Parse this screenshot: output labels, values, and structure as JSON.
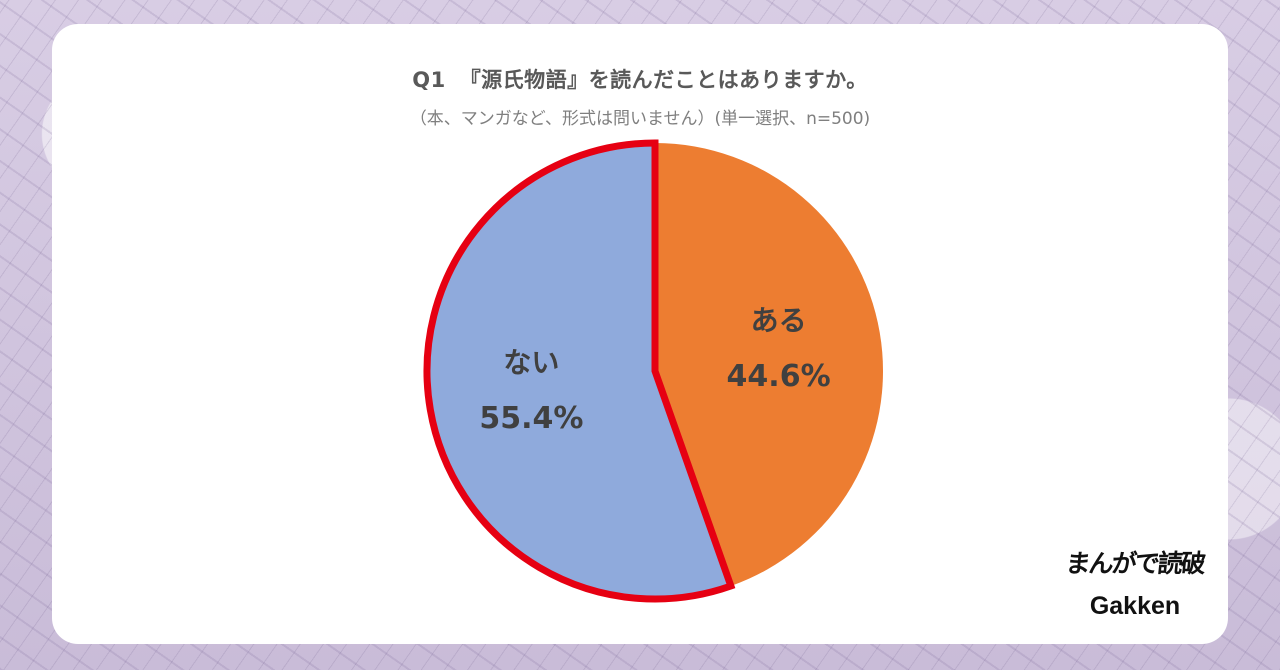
{
  "chart_data": {
    "type": "pie",
    "title_number": "Q1",
    "title": "『源氏物語』を読んだことはありますか。",
    "subtitle": "（本、マンガなど、形式は問いません）(単一選択、n=500)",
    "slices": [
      {
        "label": "ある",
        "value": 44.6,
        "value_text": "44.6%",
        "color": "#ed7d31",
        "highlighted": false
      },
      {
        "label": "ない",
        "value": 55.4,
        "value_text": "55.4%",
        "color": "#8faadc",
        "highlighted": true
      }
    ],
    "highlight_color": "#e60012",
    "start_angle": "12 o'clock, clockwise"
  },
  "brand": {
    "service_name": "まんがで読破",
    "company_name": "Gakken"
  }
}
